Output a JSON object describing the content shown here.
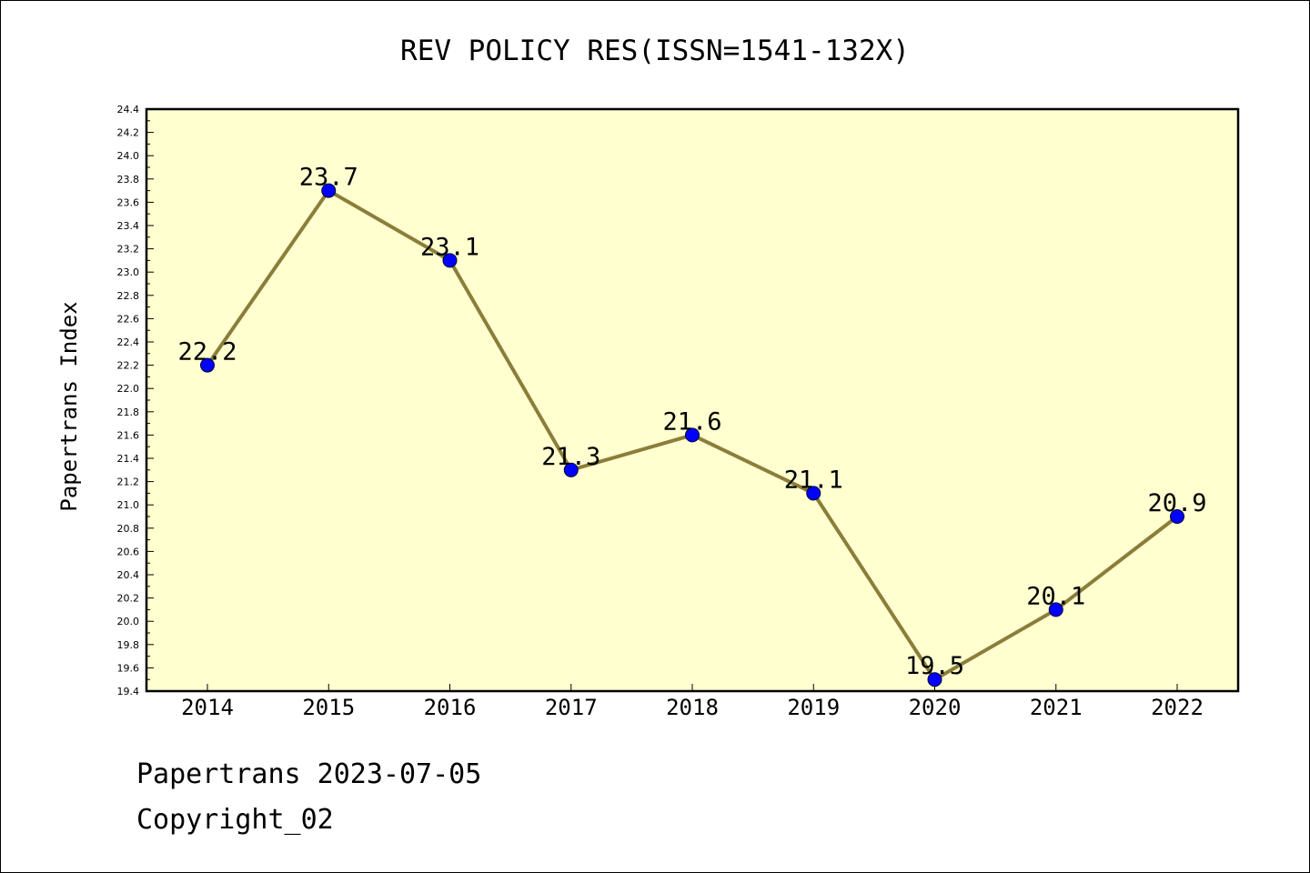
{
  "chart_data": {
    "type": "line",
    "title": "REV POLICY RES(ISSN=1541-132X)",
    "ylabel": "Papertrans Index",
    "xlabel": "",
    "categories": [
      "2014",
      "2015",
      "2016",
      "2017",
      "2018",
      "2019",
      "2020",
      "2021",
      "2022"
    ],
    "series": [
      {
        "values": [
          22.2,
          23.7,
          23.1,
          21.3,
          21.6,
          21.1,
          19.5,
          20.1,
          20.9
        ]
      }
    ],
    "data_labels": [
      "22.2",
      "23.7",
      "23.1",
      "21.3",
      "21.6",
      "21.1",
      "19.5",
      "20.1",
      "20.9"
    ],
    "ylim": [
      19.4,
      24.4
    ],
    "ytick_step": 0.2,
    "grid": false,
    "colors": {
      "plot_background": "#ffffd0",
      "line": "#8b7d3a",
      "marker_fill": "#0000ff",
      "marker_edge": "#000033"
    }
  },
  "footer": {
    "line1": "Papertrans 2023-07-05",
    "line2": "Copyright_02"
  }
}
